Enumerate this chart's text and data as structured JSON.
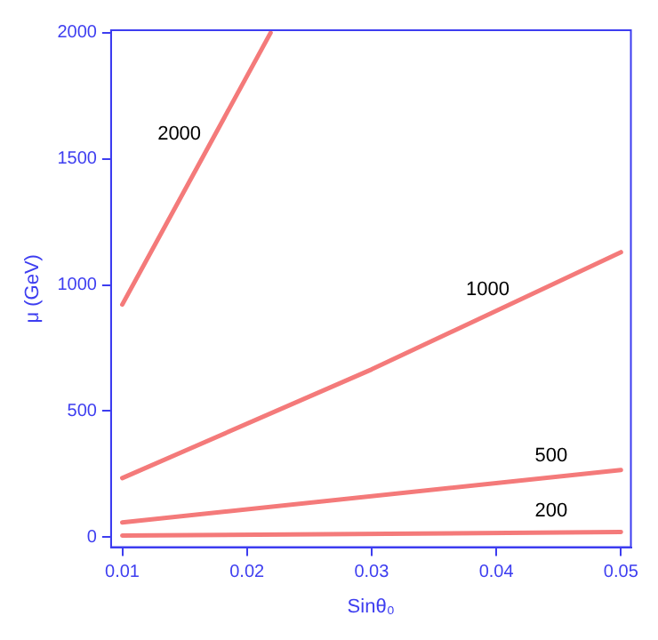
{
  "chart_data": {
    "type": "line",
    "xlabel": "Sinθ₀",
    "ylabel": "μ (GeV)",
    "xlim": [
      0.0091,
      0.0508
    ],
    "ylim": [
      -40,
      2010
    ],
    "xticks": [
      0.01,
      0.02,
      0.03,
      0.04,
      0.05
    ],
    "yticks": [
      0,
      500,
      1000,
      1500,
      2000
    ],
    "grid": false,
    "legend": false,
    "marker": "none",
    "line_style": "solid",
    "series": [
      {
        "name": "2000",
        "color": "#f47a7a",
        "x": [
          0.01,
          0.0219
        ],
        "values": [
          922,
          2000
        ]
      },
      {
        "name": "1000",
        "color": "#f47a7a",
        "x": [
          0.01,
          0.03,
          0.05
        ],
        "values": [
          234,
          665,
          1130
        ]
      },
      {
        "name": "500",
        "color": "#f47a7a",
        "x": [
          0.01,
          0.05
        ],
        "values": [
          58,
          266
        ]
      },
      {
        "name": "200",
        "color": "#f47a7a",
        "x": [
          0.01,
          0.05
        ],
        "values": [
          6,
          20
        ]
      }
    ]
  }
}
